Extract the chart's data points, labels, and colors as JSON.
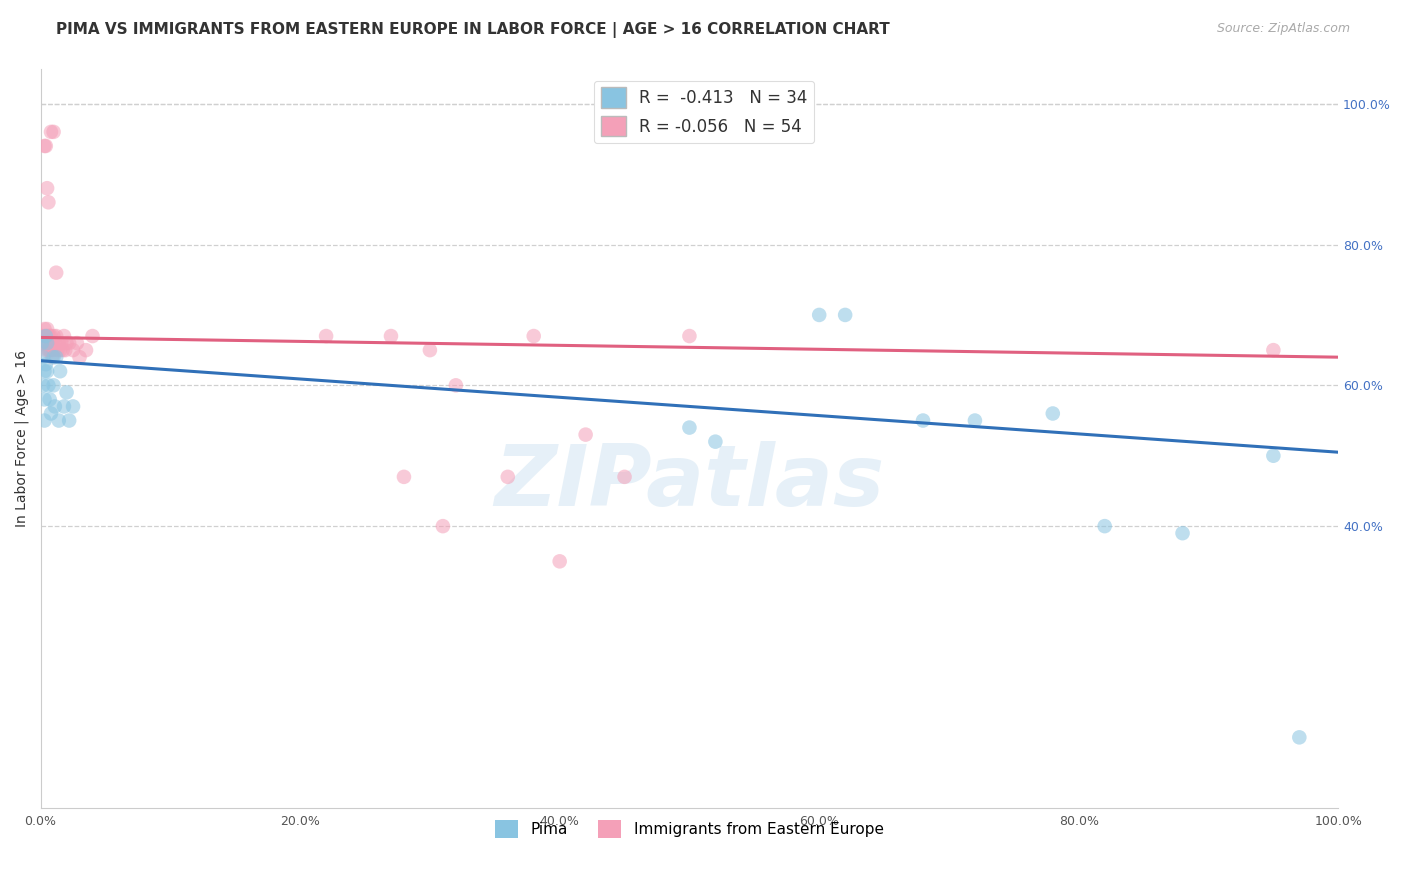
{
  "title": "PIMA VS IMMIGRANTS FROM EASTERN EUROPE IN LABOR FORCE | AGE > 16 CORRELATION CHART",
  "source": "Source: ZipAtlas.com",
  "ylabel": "In Labor Force | Age > 16",
  "xlim": [
    0.0,
    1.0
  ],
  "ylim": [
    0.0,
    1.05
  ],
  "xticks": [
    0.0,
    0.2,
    0.4,
    0.6,
    0.8,
    1.0
  ],
  "xtick_labels": [
    "0.0%",
    "20.0%",
    "40.0%",
    "60.0%",
    "80.0%",
    "100.0%"
  ],
  "right_yticks": [
    0.4,
    0.6,
    0.8,
    1.0
  ],
  "right_ytick_labels": [
    "40.0%",
    "60.0%",
    "80.0%",
    "100.0%"
  ],
  "pima_color": "#89c4e1",
  "eastern_europe_color": "#f4a0b8",
  "pima_line_color": "#3070b8",
  "eastern_europe_line_color": "#e06080",
  "background_color": "#ffffff",
  "grid_color": "#d0d0d0",
  "R_pima": -0.413,
  "N_pima": 34,
  "R_eastern": -0.056,
  "N_eastern": 54,
  "pima_x": [
    0.001,
    0.002,
    0.002,
    0.003,
    0.003,
    0.003,
    0.004,
    0.004,
    0.005,
    0.005,
    0.006,
    0.007,
    0.008,
    0.01,
    0.01,
    0.011,
    0.012,
    0.014,
    0.015,
    0.018,
    0.02,
    0.022,
    0.025,
    0.5,
    0.52,
    0.6,
    0.62,
    0.68,
    0.72,
    0.78,
    0.82,
    0.88,
    0.95,
    0.97
  ],
  "pima_y": [
    0.66,
    0.64,
    0.6,
    0.62,
    0.58,
    0.55,
    0.67,
    0.63,
    0.66,
    0.62,
    0.6,
    0.58,
    0.56,
    0.64,
    0.6,
    0.57,
    0.64,
    0.55,
    0.62,
    0.57,
    0.59,
    0.55,
    0.57,
    0.54,
    0.52,
    0.7,
    0.7,
    0.55,
    0.55,
    0.56,
    0.4,
    0.39,
    0.5,
    0.1
  ],
  "eastern_x": [
    0.001,
    0.002,
    0.003,
    0.003,
    0.004,
    0.004,
    0.005,
    0.005,
    0.006,
    0.006,
    0.007,
    0.007,
    0.008,
    0.008,
    0.009,
    0.009,
    0.01,
    0.01,
    0.011,
    0.012,
    0.013,
    0.014,
    0.015,
    0.016,
    0.017,
    0.018,
    0.019,
    0.02,
    0.022,
    0.025,
    0.028,
    0.03,
    0.035,
    0.04,
    0.22,
    0.27,
    0.3,
    0.32,
    0.38,
    0.42,
    0.5,
    0.003,
    0.004,
    0.005,
    0.006,
    0.008,
    0.01,
    0.012,
    0.28,
    0.31,
    0.36,
    0.4,
    0.45,
    0.95
  ],
  "eastern_y": [
    0.67,
    0.67,
    0.68,
    0.66,
    0.67,
    0.65,
    0.68,
    0.66,
    0.67,
    0.65,
    0.67,
    0.65,
    0.67,
    0.65,
    0.66,
    0.64,
    0.67,
    0.65,
    0.66,
    0.67,
    0.65,
    0.66,
    0.65,
    0.66,
    0.65,
    0.67,
    0.65,
    0.66,
    0.66,
    0.65,
    0.66,
    0.64,
    0.65,
    0.67,
    0.67,
    0.67,
    0.65,
    0.6,
    0.67,
    0.53,
    0.67,
    0.94,
    0.94,
    0.88,
    0.86,
    0.96,
    0.96,
    0.76,
    0.47,
    0.4,
    0.47,
    0.35,
    0.47,
    0.65
  ],
  "pima_trend_y_start": 0.635,
  "pima_trend_y_end": 0.505,
  "eastern_trend_y_start": 0.668,
  "eastern_trend_y_end": 0.64,
  "legend_pima": "Pima",
  "legend_eastern": "Immigrants from Eastern Europe",
  "marker_size": 110,
  "marker_alpha": 0.55,
  "watermark": "ZIPatlas",
  "title_fontsize": 11,
  "axis_label_fontsize": 10,
  "tick_fontsize": 9,
  "legend_fontsize": 11
}
